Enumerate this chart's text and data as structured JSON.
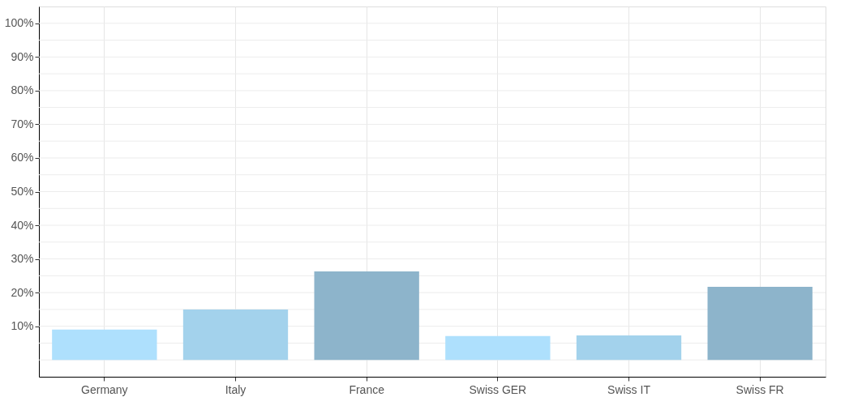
{
  "chart_data": {
    "type": "bar",
    "categories": [
      "Germany",
      "Italy",
      "France",
      "Swiss GER",
      "Swiss IT",
      "Swiss FR"
    ],
    "values": [
      9.0,
      15.0,
      26.3,
      7.1,
      7.3,
      21.7
    ],
    "colors": [
      "#aee0fd",
      "#a3d2ec",
      "#8db4cb",
      "#aee0fd",
      "#a3d2ec",
      "#8db4cb"
    ],
    "ylim": [
      -5,
      105
    ],
    "yticks": [
      {
        "value": 10,
        "label": "10%"
      },
      {
        "value": 20,
        "label": "20%"
      },
      {
        "value": 30,
        "label": "30%"
      },
      {
        "value": 40,
        "label": "40%"
      },
      {
        "value": 50,
        "label": "50%"
      },
      {
        "value": 60,
        "label": "60%"
      },
      {
        "value": 70,
        "label": "70%"
      },
      {
        "value": 80,
        "label": "80%"
      },
      {
        "value": 90,
        "label": "90%"
      },
      {
        "value": 100,
        "label": "100%"
      }
    ],
    "grid": true
  }
}
